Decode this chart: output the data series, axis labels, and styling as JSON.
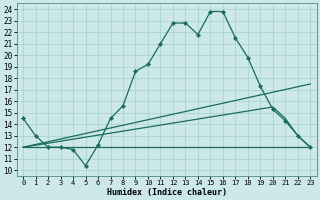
{
  "xlabel": "Humidex (Indice chaleur)",
  "bg_color": "#cce8e8",
  "grid_color": "#aad4d4",
  "line_color": "#1a6b5a",
  "xlim": [
    -0.5,
    23.5
  ],
  "ylim": [
    9.5,
    24.5
  ],
  "yticks": [
    10,
    11,
    12,
    13,
    14,
    15,
    16,
    17,
    18,
    19,
    20,
    21,
    22,
    23,
    24
  ],
  "xticks": [
    0,
    1,
    2,
    3,
    4,
    5,
    6,
    7,
    8,
    9,
    10,
    11,
    12,
    13,
    14,
    15,
    16,
    17,
    18,
    19,
    20,
    21,
    22,
    23
  ],
  "line1_x": [
    0,
    1,
    2,
    3,
    4,
    5,
    6,
    7,
    8,
    9,
    10,
    11,
    12,
    13,
    14,
    15,
    16,
    17,
    18,
    19,
    20,
    21,
    22,
    23
  ],
  "line1_y": [
    14.5,
    13.0,
    12.0,
    12.0,
    11.8,
    10.4,
    12.2,
    14.5,
    15.6,
    18.6,
    19.2,
    21.0,
    22.8,
    22.8,
    21.8,
    23.8,
    23.8,
    21.5,
    19.8,
    17.3,
    15.3,
    14.3,
    13.0,
    12.0
  ],
  "line2_x": [
    0,
    23
  ],
  "line2_y": [
    12.0,
    17.5
  ],
  "line3_x": [
    0,
    20,
    21,
    22,
    23
  ],
  "line3_y": [
    12.0,
    15.5,
    14.5,
    13.0,
    12.0
  ],
  "line4_x": [
    0,
    23
  ],
  "line4_y": [
    12.0,
    12.0
  ]
}
